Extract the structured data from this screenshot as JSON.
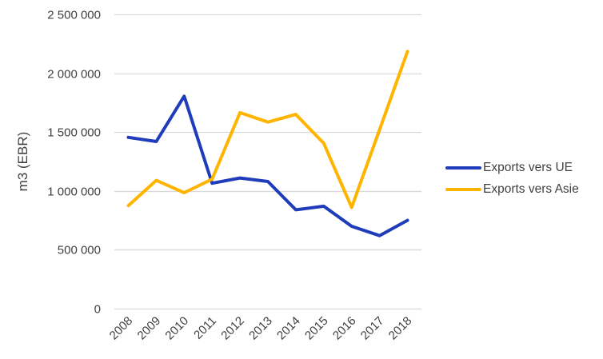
{
  "chart_data": {
    "type": "line",
    "title": "",
    "xlabel": "",
    "ylabel": "m3 (EBR)",
    "ylim": [
      0,
      2500000
    ],
    "yticks": [
      0,
      500000,
      1000000,
      1500000,
      2000000,
      2500000
    ],
    "ytick_labels": [
      "0",
      "500 000",
      "1 000 000",
      "1 500 000",
      "2 000 000",
      "2 500 000"
    ],
    "grid": true,
    "legend_position": "right",
    "categories": [
      "2008",
      "2009",
      "2010",
      "2011",
      "2012",
      "2013",
      "2014",
      "2015",
      "2016",
      "2017",
      "2018"
    ],
    "series": [
      {
        "name": "Exports vers UE",
        "color": "#1f3cba",
        "values": [
          1455000,
          1420000,
          1805000,
          1065000,
          1110000,
          1080000,
          840000,
          870000,
          700000,
          620000,
          750000
        ]
      },
      {
        "name": "Exports vers Asie",
        "color": "#ffb400",
        "values": [
          875000,
          1090000,
          985000,
          1100000,
          1665000,
          1585000,
          1650000,
          1405000,
          860000,
          1520000,
          2185000
        ]
      }
    ]
  },
  "legend": {
    "items": [
      {
        "label": "Exports vers UE",
        "color": "#1f3cba"
      },
      {
        "label": "Exports vers Asie",
        "color": "#ffb400"
      }
    ]
  },
  "axis": {
    "ylabel": "m3 (EBR)"
  }
}
